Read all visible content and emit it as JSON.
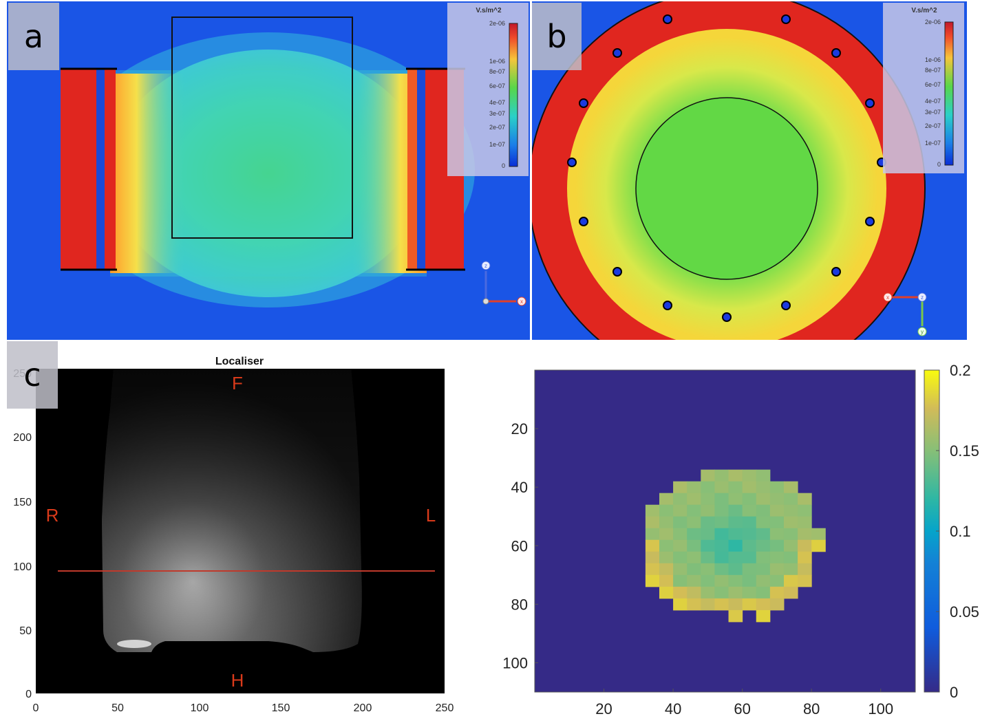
{
  "panel_labels": {
    "a": "a",
    "b": "b",
    "c": "c"
  },
  "legend": {
    "unit": "V.s/m^2",
    "ticks": [
      "2e-06",
      "1e-06",
      "8e-07",
      "6e-07",
      "4e-07",
      "3e-07",
      "2e-07",
      "1e-07",
      "0"
    ]
  },
  "axes_gizmo": {
    "a": [
      "z",
      "x"
    ],
    "b": [
      "x",
      "z",
      "y"
    ]
  },
  "localiser": {
    "title": "Localiser",
    "orientation": {
      "top": "F",
      "bottom": "H",
      "left": "R",
      "right": "L"
    },
    "y_ticks": [
      "250",
      "200",
      "150",
      "100",
      "50",
      "0"
    ],
    "x_ticks": [
      "0",
      "50",
      "100",
      "150",
      "200",
      "250"
    ],
    "line_color": "#c0392b"
  },
  "chart_data": [
    {
      "type": "heatmap",
      "title": "",
      "x_ticks": [
        20,
        40,
        60,
        80,
        100
      ],
      "y_ticks": [
        20,
        40,
        60,
        80,
        100
      ],
      "xlim": [
        0,
        110
      ],
      "ylim": [
        0,
        110
      ],
      "colorbar_ticks": [
        0,
        0.05,
        0.1,
        0.15,
        0.2
      ],
      "colorbar_labels": [
        "0.2",
        "0.15",
        "0.1",
        "0.05",
        "0"
      ],
      "colormap": "parula",
      "background_value": 0,
      "phantom_center": [
        57,
        59
      ],
      "phantom_radius": 25,
      "typical_value": 0.14
    }
  ]
}
